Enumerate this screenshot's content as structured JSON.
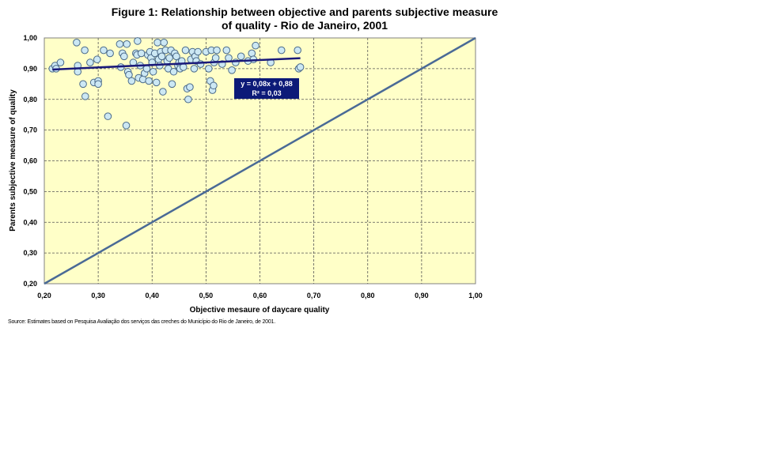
{
  "chart_data": {
    "type": "scatter",
    "title_line1": "Figure 1: Relationship between objective and parents subjective measure",
    "title_line2": "of quality - Rio de Janeiro, 2001",
    "xlabel": "Objective mesaure of daycare quality",
    "ylabel": "Parents subjective measure of quality",
    "xlim": [
      0.2,
      1.0
    ],
    "ylim": [
      0.2,
      1.0
    ],
    "x_ticks": [
      "0,20",
      "0,30",
      "0,40",
      "0,50",
      "0,60",
      "0,70",
      "0,80",
      "0,90",
      "1,00"
    ],
    "y_ticks": [
      "0,20",
      "0,30",
      "0,40",
      "0,50",
      "0,60",
      "0,70",
      "0,80",
      "0,90",
      "1,00"
    ],
    "grid": true,
    "plot_background": "#FFFFC8",
    "point_color": "#CCE8F4",
    "point_edge": "#4A6A8A",
    "trend_color": "#1A1A7A",
    "diagonal_color": "#4A6A96",
    "trendline": {
      "slope": 0.08,
      "intercept": 0.88,
      "x_range": [
        0.215,
        0.675
      ],
      "equation": "y = 0,08x + 0,88",
      "r2": "R² = 0,03"
    },
    "diagonal": {
      "from": [
        0.2,
        0.2
      ],
      "to": [
        1.0,
        1.0
      ]
    },
    "points": [
      [
        0.215,
        0.9
      ],
      [
        0.22,
        0.91
      ],
      [
        0.222,
        0.9
      ],
      [
        0.23,
        0.92
      ],
      [
        0.26,
        0.985
      ],
      [
        0.262,
        0.91
      ],
      [
        0.262,
        0.89
      ],
      [
        0.272,
        0.85
      ],
      [
        0.275,
        0.96
      ],
      [
        0.276,
        0.81
      ],
      [
        0.285,
        0.92
      ],
      [
        0.292,
        0.855
      ],
      [
        0.298,
        0.93
      ],
      [
        0.3,
        0.86
      ],
      [
        0.3,
        0.85
      ],
      [
        0.31,
        0.96
      ],
      [
        0.318,
        0.745
      ],
      [
        0.322,
        0.95
      ],
      [
        0.34,
        0.98
      ],
      [
        0.342,
        0.905
      ],
      [
        0.345,
        0.95
      ],
      [
        0.348,
        0.94
      ],
      [
        0.352,
        0.715
      ],
      [
        0.353,
        0.98
      ],
      [
        0.355,
        0.89
      ],
      [
        0.357,
        0.88
      ],
      [
        0.362,
        0.86
      ],
      [
        0.365,
        0.92
      ],
      [
        0.37,
        0.95
      ],
      [
        0.372,
        0.945
      ],
      [
        0.373,
        0.99
      ],
      [
        0.375,
        0.87
      ],
      [
        0.378,
        0.91
      ],
      [
        0.38,
        0.95
      ],
      [
        0.383,
        0.865
      ],
      [
        0.386,
        0.885
      ],
      [
        0.39,
        0.9
      ],
      [
        0.392,
        0.945
      ],
      [
        0.394,
        0.86
      ],
      [
        0.396,
        0.955
      ],
      [
        0.398,
        0.935
      ],
      [
        0.4,
        0.92
      ],
      [
        0.402,
        0.89
      ],
      [
        0.405,
        0.95
      ],
      [
        0.408,
        0.855
      ],
      [
        0.41,
        0.985
      ],
      [
        0.412,
        0.93
      ],
      [
        0.414,
        0.91
      ],
      [
        0.416,
        0.955
      ],
      [
        0.418,
        0.94
      ],
      [
        0.42,
        0.825
      ],
      [
        0.422,
        0.985
      ],
      [
        0.425,
        0.96
      ],
      [
        0.428,
        0.925
      ],
      [
        0.43,
        0.9
      ],
      [
        0.432,
        0.935
      ],
      [
        0.435,
        0.96
      ],
      [
        0.437,
        0.85
      ],
      [
        0.44,
        0.89
      ],
      [
        0.442,
        0.95
      ],
      [
        0.445,
        0.94
      ],
      [
        0.448,
        0.91
      ],
      [
        0.45,
        0.92
      ],
      [
        0.452,
        0.9
      ],
      [
        0.455,
        0.925
      ],
      [
        0.458,
        0.905
      ],
      [
        0.462,
        0.96
      ],
      [
        0.465,
        0.835
      ],
      [
        0.467,
        0.8
      ],
      [
        0.47,
        0.84
      ],
      [
        0.472,
        0.93
      ],
      [
        0.475,
        0.955
      ],
      [
        0.478,
        0.9
      ],
      [
        0.48,
        0.94
      ],
      [
        0.482,
        0.925
      ],
      [
        0.485,
        0.955
      ],
      [
        0.49,
        0.915
      ],
      [
        0.5,
        0.955
      ],
      [
        0.505,
        0.9
      ],
      [
        0.508,
        0.86
      ],
      [
        0.51,
        0.96
      ],
      [
        0.512,
        0.83
      ],
      [
        0.514,
        0.845
      ],
      [
        0.515,
        0.92
      ],
      [
        0.518,
        0.935
      ],
      [
        0.52,
        0.96
      ],
      [
        0.53,
        0.915
      ],
      [
        0.538,
        0.96
      ],
      [
        0.542,
        0.935
      ],
      [
        0.548,
        0.895
      ],
      [
        0.555,
        0.92
      ],
      [
        0.565,
        0.94
      ],
      [
        0.578,
        0.925
      ],
      [
        0.585,
        0.95
      ],
      [
        0.588,
        0.93
      ],
      [
        0.592,
        0.975
      ],
      [
        0.62,
        0.92
      ],
      [
        0.64,
        0.96
      ],
      [
        0.67,
        0.96
      ],
      [
        0.672,
        0.9
      ],
      [
        0.675,
        0.905
      ]
    ]
  },
  "source_note": "Source: Estimates based on Pesquisa Avaliação dos serviços das creches do Município do Rio de Janeiro, de 2001."
}
